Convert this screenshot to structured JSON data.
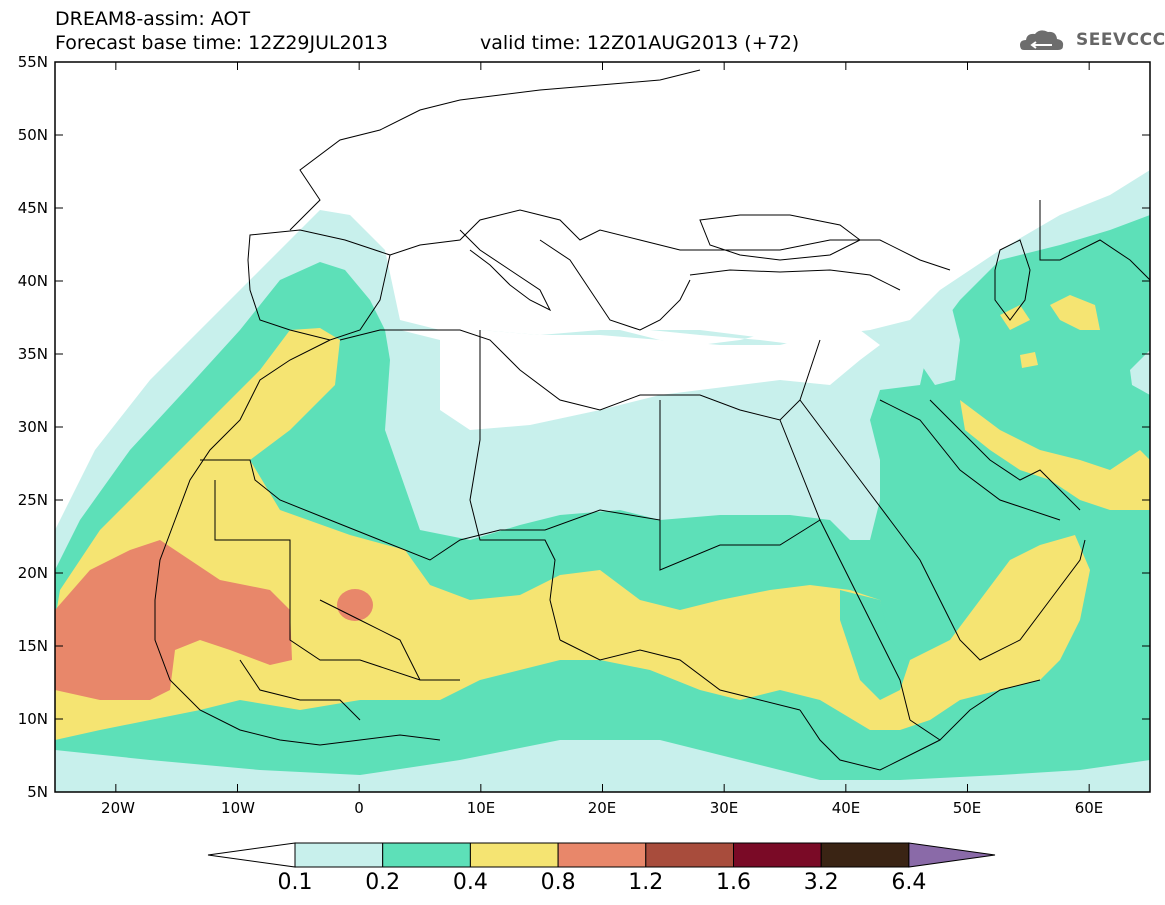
{
  "header": {
    "title": "DREAM8-assim: AOT",
    "base_time": "Forecast base time: 12Z29JUL2013",
    "valid_time": "valid time: 12Z01AUG2013 (+72)",
    "logo_text": "SEEVCCC"
  },
  "map": {
    "variable": "AOT",
    "lat_labels": [
      "55N",
      "50N",
      "45N",
      "40N",
      "35N",
      "30N",
      "25N",
      "20N",
      "15N",
      "10N",
      "5N"
    ],
    "lon_labels": [
      "20W",
      "10W",
      "0",
      "10E",
      "20E",
      "30E",
      "40E",
      "50E",
      "60E"
    ],
    "lon_range": [
      -25,
      65
    ],
    "lat_range": [
      5,
      55
    ]
  },
  "colorbar": {
    "levels": [
      "0.1",
      "0.2",
      "0.4",
      "0.8",
      "1.2",
      "1.6",
      "3.2",
      "6.4"
    ],
    "colors": [
      "#c8f0ec",
      "#5de0b8",
      "#f5e472",
      "#e8876a",
      "#a84c3c",
      "#7a0a26",
      "#3a2414",
      "#8a6aa8"
    ],
    "under_color": "#ffffff",
    "over_color": "#8a6aa8"
  }
}
